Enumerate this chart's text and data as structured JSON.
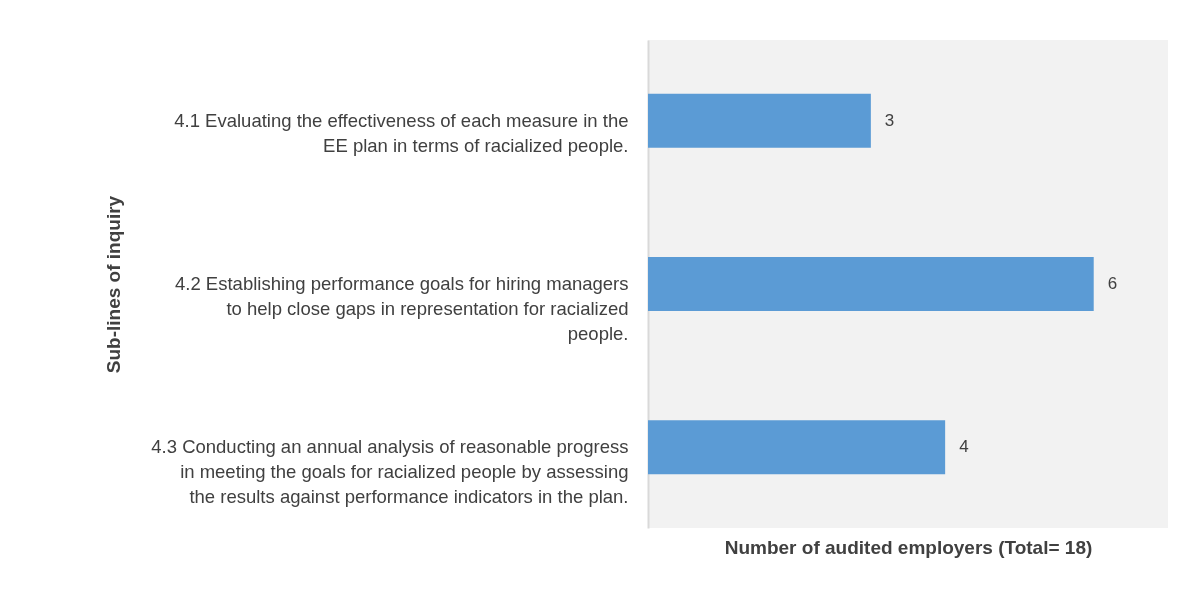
{
  "chart_data": {
    "type": "bar",
    "orientation": "horizontal",
    "xlabel": "Number of audited employers (Total= 18)",
    "ylabel": "Sub-lines of inquiry",
    "categories": [
      "4.1 Evaluating the effectiveness of each measure in the EE plan in terms of racialized people.",
      "4.2 Establishing performance goals for hiring managers to help close gaps in representation for racialized people.",
      "4.3 Conducting an annual analysis of reasonable progress in meeting the goals for racialized people by assessing the results against performance indicators in the plan."
    ],
    "values": [
      3,
      6,
      4
    ],
    "color": "#5b9bd5",
    "xlim": [
      0,
      7
    ],
    "data_labels": true,
    "tick_labels": "y",
    "grid": false
  }
}
